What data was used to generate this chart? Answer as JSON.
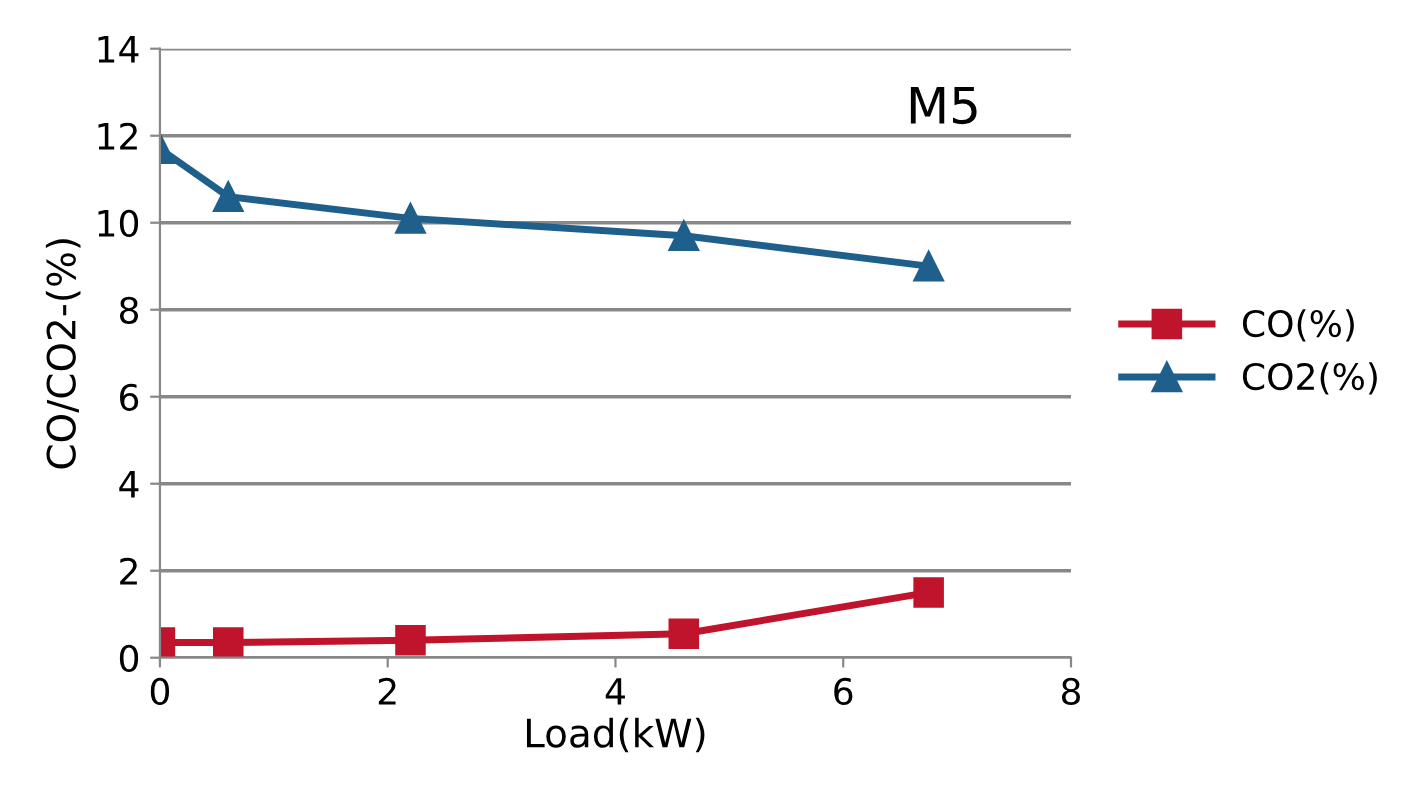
{
  "chart_data": {
    "type": "line",
    "xlabel": "Load(kW)",
    "ylabel": "CO/CO2-(%)",
    "annotations": [
      "M5"
    ],
    "xlim": [
      0,
      8
    ],
    "xticks": [
      0,
      2,
      4,
      6,
      8
    ],
    "ylim": [
      0,
      14
    ],
    "yticks": [
      0,
      2,
      4,
      6,
      8,
      10,
      12,
      14
    ],
    "grid": "y",
    "legend": "right",
    "line_style": "solid",
    "series": [
      {
        "name": "CO(%)",
        "color": "#c0142c",
        "marker": "square",
        "x": [
          0,
          0.6,
          2.2,
          4.6,
          6.75
        ],
        "values": [
          0.35,
          0.35,
          0.4,
          0.55,
          1.5
        ]
      },
      {
        "name": "CO2(%)",
        "color": "#1f5f8b",
        "marker": "triangle",
        "x": [
          0,
          0.6,
          2.2,
          4.6,
          6.75
        ],
        "values": [
          11.7,
          10.6,
          10.1,
          9.7,
          9.0
        ]
      }
    ]
  }
}
